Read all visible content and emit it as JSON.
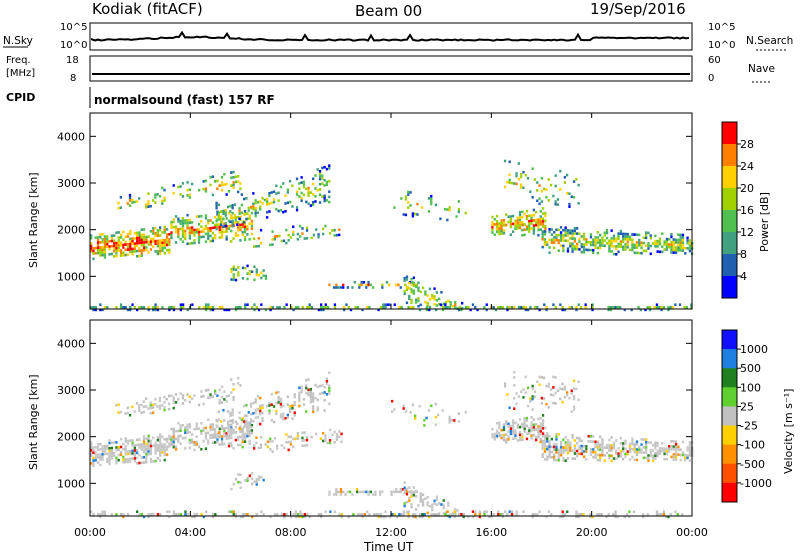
{
  "header": {
    "station": "Kodiak (fitACF)",
    "beam": "Beam 00",
    "date": "19/Sep/2016"
  },
  "status_panels": {
    "nsky_label": "N.Sky",
    "nsearch_label": "N.Search",
    "nsky_ticks": [
      "10^5",
      "10^0"
    ],
    "freq_label": "Freq.",
    "freq_unit": "[MHz]",
    "freq_ticks": [
      "18",
      "8"
    ],
    "nave_label": "Nave",
    "nave_ticks": [
      "60",
      "0"
    ],
    "cpid_label": "CPID",
    "cpid_value": "normalsound (fast) 157 RF"
  },
  "chart_data": [
    {
      "type": "heatmap",
      "name": "power",
      "xlabel": "",
      "ylabel": "Slant Range [km]",
      "ylim": [
        300,
        4500
      ],
      "y_ticks": [
        1000,
        2000,
        3000,
        4000
      ],
      "xlim_hours": [
        0,
        24
      ],
      "colorbar_label": "Power [dB]",
      "colorbar_ticks": [
        "28",
        "24",
        "20",
        "16",
        "12",
        "8",
        "4"
      ],
      "colorbar_colors": [
        "#ff0000",
        "#ff8000",
        "#ffd000",
        "#a0d000",
        "#50c050",
        "#40a080",
        "#2060b0",
        "#0000ff"
      ]
    },
    {
      "type": "heatmap",
      "name": "velocity",
      "xlabel": "Time UT",
      "ylabel": "Slant Range [km]",
      "ylim": [
        300,
        4500
      ],
      "y_ticks": [
        1000,
        2000,
        3000,
        4000
      ],
      "xlim_hours": [
        0,
        24
      ],
      "x_ticks": [
        "00:00",
        "04:00",
        "08:00",
        "12:00",
        "16:00",
        "20:00",
        "00:00"
      ],
      "colorbar_label": "Velocity [m s⁻¹]",
      "colorbar_ticks": [
        "1000",
        "500",
        "100",
        "25",
        "-25",
        "-100",
        "-500",
        "-1000"
      ],
      "colorbar_colors": [
        "#1010ff",
        "#2080e0",
        "#208020",
        "#60d030",
        "#c0c0c0",
        "#ffd000",
        "#ff9000",
        "#ff5000",
        "#ff0000"
      ]
    }
  ]
}
